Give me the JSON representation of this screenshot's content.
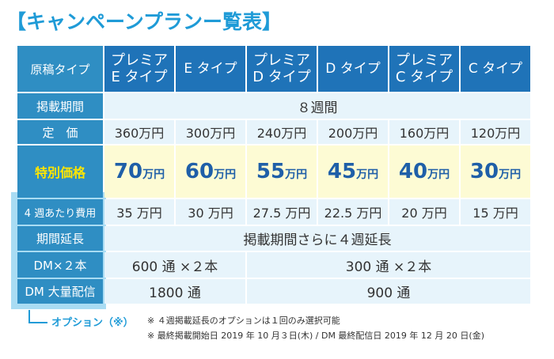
{
  "title": "【キャンペーンプランー覧表】",
  "header": {
    "row_label": "原稿タイプ",
    "plans": [
      {
        "line1": "プレミア",
        "line2": "E タイプ"
      },
      {
        "line1": "E タイプ",
        "line2": ""
      },
      {
        "line1": "プレミア",
        "line2": "D タイプ"
      },
      {
        "line1": "D タイプ",
        "line2": ""
      },
      {
        "line1": "プレミア",
        "line2": "C タイプ"
      },
      {
        "line1": "C タイプ",
        "line2": ""
      }
    ]
  },
  "rows": {
    "period": {
      "label": "掲載期間",
      "value": "８週間"
    },
    "price": {
      "label": "定　価",
      "values": [
        "360万円",
        "300万円",
        "240万円",
        "200万円",
        "160万円",
        "120万円"
      ]
    },
    "special": {
      "label": "特別価格",
      "values": [
        {
          "num": "70",
          "unit": "万円"
        },
        {
          "num": "60",
          "unit": "万円"
        },
        {
          "num": "55",
          "unit": "万円"
        },
        {
          "num": "45",
          "unit": "万円"
        },
        {
          "num": "40",
          "unit": "万円"
        },
        {
          "num": "30",
          "unit": "万円"
        }
      ]
    },
    "per4": {
      "label": "4 週あたり費用",
      "values": [
        "35 万円",
        "30 万円",
        "27.5 万円",
        "22.5 万円",
        "20 万円",
        "15 万円"
      ]
    },
    "extension": {
      "label": "期間延長",
      "value": "掲載期間さらに４週延長"
    },
    "dm": {
      "label": "DM×２本",
      "left": "600 通 ×２本",
      "right": "300 通 ×２本"
    },
    "dm_bulk": {
      "label": "DM 大量配信",
      "left": "1800 通",
      "right": "900 通"
    }
  },
  "option_label": "オプション（※）",
  "notes": [
    "※ ４週掲載延長のオプションは１回のみ選択可能",
    "※ 最終掲載開始日 2019 年 10 月３日(木)  / DM 最終配信日 2019 年 12 月 20 日(金)"
  ],
  "colors": {
    "title": "#1f9bd7",
    "header_bg": "#1f73b8",
    "row_label_bg": "#2f8ec3",
    "cell_bg": "#e7f4fb",
    "special_bg": "#fdfbd4",
    "special_label_text": "#ffe600",
    "special_value_text": "#1f5fa8",
    "option_frame": "#a9dcf3"
  }
}
